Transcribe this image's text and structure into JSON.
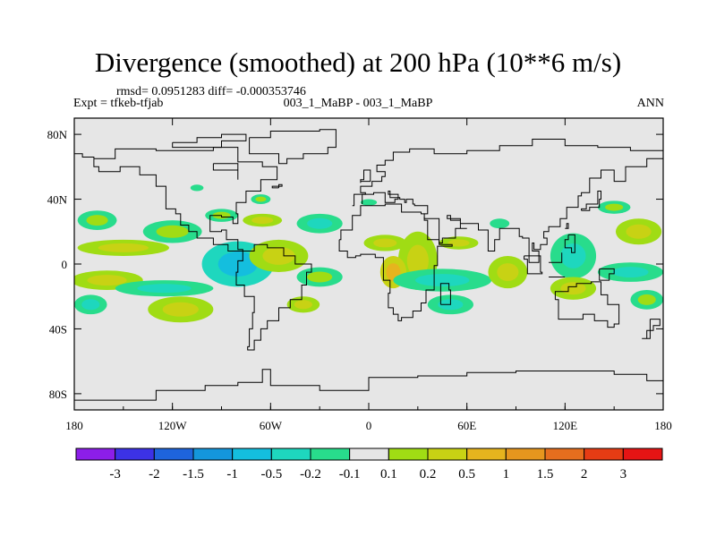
{
  "header": {
    "title": "Divergence (smoothed) at 200 hPa (10**6 m/s)",
    "stats": "rmsd= 0.0951283 diff= -0.000353746",
    "experiment": "Expt = tfkeb-tfjab",
    "cases": "003_1_MaBP - 003_1_MaBP",
    "period": "ANN"
  },
  "chart_data": {
    "type": "heatmap",
    "title": "Divergence (smoothed) at 200 hPa (10**6 m/s)",
    "x_axis": {
      "range": [
        -180,
        180
      ],
      "ticks": [
        {
          "value": -180,
          "label": "180"
        },
        {
          "value": -120,
          "label": "120W"
        },
        {
          "value": -60,
          "label": "60W"
        },
        {
          "value": 0,
          "label": "0"
        },
        {
          "value": 60,
          "label": "60E"
        },
        {
          "value": 120,
          "label": "120E"
        },
        {
          "value": 180,
          "label": "180"
        }
      ]
    },
    "y_axis": {
      "range": [
        -90,
        90
      ],
      "ticks": [
        {
          "value": 80,
          "label": "80N"
        },
        {
          "value": 40,
          "label": "40N"
        },
        {
          "value": 0,
          "label": "0"
        },
        {
          "value": -40,
          "label": "40S"
        },
        {
          "value": -80,
          "label": "80S"
        }
      ]
    },
    "colorbar": {
      "labels": [
        "-3",
        "-2",
        "-1.5",
        "-1",
        "-0.5",
        "-0.2",
        "-0.1",
        "0.1",
        "0.2",
        "0.5",
        "1",
        "1.5",
        "2",
        "3"
      ],
      "colors": [
        "#8c1ee8",
        "#3c32e6",
        "#1e64dc",
        "#1496dc",
        "#14bede",
        "#1ed7be",
        "#28dc8c",
        "#e6e6e6",
        "#a0dc14",
        "#c8d214",
        "#e6b41e",
        "#e6961e",
        "#e66e1e",
        "#e63c14",
        "#e61414"
      ]
    },
    "background_color": "#e6e6e6",
    "regions": [
      {
        "lon": -166,
        "lat": 27,
        "rx": 12,
        "ry": 6,
        "color": "#28dc8c",
        "core": "#a0dc14"
      },
      {
        "lon": -120,
        "lat": 20,
        "rx": 18,
        "ry": 7,
        "color": "#28dc8c",
        "core": "#a0dc14"
      },
      {
        "lon": -150,
        "lat": 10,
        "rx": 28,
        "ry": 5,
        "color": "#a0dc14",
        "core": "#c8d214"
      },
      {
        "lon": -160,
        "lat": -10,
        "rx": 22,
        "ry": 6,
        "color": "#a0dc14",
        "core": "#c8d214"
      },
      {
        "lon": -125,
        "lat": -15,
        "rx": 30,
        "ry": 5,
        "color": "#28dc8c",
        "core": "#1ed7be"
      },
      {
        "lon": -170,
        "lat": -25,
        "rx": 10,
        "ry": 6,
        "color": "#28dc8c",
        "core": "#1ed7be"
      },
      {
        "lon": -115,
        "lat": -28,
        "rx": 20,
        "ry": 8,
        "color": "#a0dc14",
        "core": "#c8d214"
      },
      {
        "lon": -80,
        "lat": 0,
        "rx": 22,
        "ry": 14,
        "color": "#1ed7be",
        "core": "#14bede"
      },
      {
        "lon": -55,
        "lat": 5,
        "rx": 18,
        "ry": 10,
        "color": "#a0dc14",
        "core": "#c8d214"
      },
      {
        "lon": -30,
        "lat": 25,
        "rx": 14,
        "ry": 6,
        "color": "#28dc8c",
        "core": "#1ed7be"
      },
      {
        "lon": -65,
        "lat": 27,
        "rx": 12,
        "ry": 4,
        "color": "#a0dc14",
        "core": "#c8d214"
      },
      {
        "lon": -90,
        "lat": 30,
        "rx": 10,
        "ry": 4,
        "color": "#28dc8c",
        "core": "#a0dc14"
      },
      {
        "lon": -30,
        "lat": -8,
        "rx": 14,
        "ry": 6,
        "color": "#28dc8c",
        "core": "#a0dc14"
      },
      {
        "lon": -40,
        "lat": -25,
        "rx": 10,
        "ry": 5,
        "color": "#a0dc14",
        "core": "#c8d214"
      },
      {
        "lon": -66,
        "lat": 40,
        "rx": 6,
        "ry": 3,
        "color": "#28dc8c",
        "core": "#a0dc14"
      },
      {
        "lon": -105,
        "lat": 47,
        "rx": 4,
        "ry": 2,
        "color": "#28dc8c",
        "core": "#28dc8c"
      },
      {
        "lon": 10,
        "lat": 13,
        "rx": 13,
        "ry": 5,
        "color": "#a0dc14",
        "core": "#c8d214"
      },
      {
        "lon": 30,
        "lat": 2,
        "rx": 12,
        "ry": 18,
        "color": "#a0dc14",
        "core": "#c8d214"
      },
      {
        "lon": 15,
        "lat": -5,
        "rx": 8,
        "ry": 10,
        "color": "#c8d214",
        "core": "#e6b41e"
      },
      {
        "lon": 55,
        "lat": 13,
        "rx": 12,
        "ry": 4,
        "color": "#a0dc14",
        "core": "#c8d214"
      },
      {
        "lon": 45,
        "lat": -10,
        "rx": 30,
        "ry": 7,
        "color": "#28dc8c",
        "core": "#1ed7be"
      },
      {
        "lon": 50,
        "lat": -25,
        "rx": 14,
        "ry": 6,
        "color": "#28dc8c",
        "core": "#1ed7be"
      },
      {
        "lon": 85,
        "lat": -5,
        "rx": 12,
        "ry": 10,
        "color": "#a0dc14",
        "core": "#c8d214"
      },
      {
        "lon": 80,
        "lat": 25,
        "rx": 6,
        "ry": 3,
        "color": "#28dc8c",
        "core": "#28dc8c"
      },
      {
        "lon": 125,
        "lat": 5,
        "rx": 14,
        "ry": 14,
        "color": "#28dc8c",
        "core": "#1ed7be"
      },
      {
        "lon": 125,
        "lat": -15,
        "rx": 14,
        "ry": 7,
        "color": "#a0dc14",
        "core": "#c8d214"
      },
      {
        "lon": 160,
        "lat": -5,
        "rx": 20,
        "ry": 6,
        "color": "#28dc8c",
        "core": "#1ed7be"
      },
      {
        "lon": 165,
        "lat": 20,
        "rx": 14,
        "ry": 8,
        "color": "#a0dc14",
        "core": "#c8d214"
      },
      {
        "lon": 150,
        "lat": 35,
        "rx": 10,
        "ry": 4,
        "color": "#28dc8c",
        "core": "#a0dc14"
      },
      {
        "lon": 170,
        "lat": -22,
        "rx": 10,
        "ry": 6,
        "color": "#28dc8c",
        "core": "#a0dc14"
      },
      {
        "lon": 0,
        "lat": 38,
        "rx": 5,
        "ry": 2,
        "color": "#28dc8c",
        "core": "#28dc8c"
      }
    ],
    "coastlines": [
      [
        [
          -168,
          65
        ],
        [
          -155,
          71
        ],
        [
          -130,
          70
        ],
        [
          -95,
          72
        ],
        [
          -80,
          63
        ],
        [
          -65,
          60
        ],
        [
          -56,
          52
        ],
        [
          -66,
          45
        ],
        [
          -75,
          38
        ],
        [
          -81,
          31
        ],
        [
          -80,
          25
        ],
        [
          -83,
          29
        ],
        [
          -90,
          30
        ],
        [
          -97,
          27
        ],
        [
          -97,
          20
        ],
        [
          -90,
          21
        ],
        [
          -87,
          15
        ],
        [
          -80,
          9
        ],
        [
          -77,
          8
        ],
        [
          -86,
          12
        ],
        [
          -95,
          16
        ],
        [
          -105,
          20
        ],
        [
          -110,
          24
        ],
        [
          -115,
          31
        ],
        [
          -118,
          34
        ],
        [
          -124,
          40
        ],
        [
          -124,
          48
        ],
        [
          -130,
          55
        ],
        [
          -140,
          60
        ],
        [
          -152,
          57
        ],
        [
          -165,
          60
        ],
        [
          -168,
          65
        ]
      ],
      [
        [
          -77,
          8
        ],
        [
          -70,
          12
        ],
        [
          -62,
          10
        ],
        [
          -52,
          5
        ],
        [
          -45,
          0
        ],
        [
          -35,
          -5
        ],
        [
          -38,
          -13
        ],
        [
          -41,
          -22
        ],
        [
          -48,
          -27
        ],
        [
          -55,
          -35
        ],
        [
          -62,
          -40
        ],
        [
          -66,
          -47
        ],
        [
          -70,
          -53
        ],
        [
          -74,
          -51
        ],
        [
          -73,
          -40
        ],
        [
          -71,
          -30
        ],
        [
          -70,
          -20
        ],
        [
          -76,
          -13
        ],
        [
          -81,
          -5
        ],
        [
          -80,
          2
        ],
        [
          -77,
          8
        ]
      ],
      [
        [
          -18,
          15
        ],
        [
          -17,
          21
        ],
        [
          -10,
          30
        ],
        [
          -5,
          36
        ],
        [
          10,
          37
        ],
        [
          20,
          32
        ],
        [
          32,
          31
        ],
        [
          34,
          28
        ],
        [
          43,
          12
        ],
        [
          51,
          11
        ],
        [
          42,
          -1
        ],
        [
          40,
          -10
        ],
        [
          40,
          -16
        ],
        [
          35,
          -24
        ],
        [
          32,
          -29
        ],
        [
          27,
          -33
        ],
        [
          20,
          -35
        ],
        [
          18,
          -31
        ],
        [
          15,
          -27
        ],
        [
          12,
          -18
        ],
        [
          13,
          -10
        ],
        [
          9,
          -1
        ],
        [
          9,
          4
        ],
        [
          4,
          6
        ],
        [
          -5,
          5
        ],
        [
          -8,
          4
        ],
        [
          -13,
          8
        ],
        [
          -18,
          15
        ]
      ],
      [
        [
          -10,
          36
        ],
        [
          -9,
          43
        ],
        [
          -2,
          44
        ],
        [
          -5,
          48
        ],
        [
          2,
          51
        ],
        [
          8,
          54
        ],
        [
          10,
          57
        ],
        [
          5,
          61
        ],
        [
          10,
          64
        ],
        [
          15,
          69
        ],
        [
          25,
          71
        ],
        [
          40,
          68
        ],
        [
          60,
          70
        ],
        [
          80,
          73
        ],
        [
          100,
          77
        ],
        [
          120,
          73
        ],
        [
          140,
          72
        ],
        [
          160,
          70
        ],
        [
          180,
          68
        ]
      ],
      [
        [
          180,
          65
        ],
        [
          170,
          60
        ],
        [
          160,
          60
        ],
        [
          157,
          51
        ],
        [
          150,
          58
        ],
        [
          142,
          53
        ],
        [
          135,
          44
        ],
        [
          130,
          42
        ],
        [
          128,
          35
        ],
        [
          121,
          31
        ],
        [
          121,
          28
        ],
        [
          117,
          23
        ],
        [
          110,
          20
        ],
        [
          107,
          16
        ],
        [
          109,
          12
        ],
        [
          105,
          9
        ],
        [
          101,
          13
        ],
        [
          100,
          8
        ],
        [
          104,
          1
        ],
        [
          98,
          8
        ],
        [
          98,
          16
        ],
        [
          94,
          17
        ],
        [
          92,
          22
        ],
        [
          88,
          22
        ],
        [
          80,
          15
        ],
        [
          77,
          8
        ],
        [
          73,
          16
        ],
        [
          73,
          21
        ],
        [
          67,
          25
        ],
        [
          57,
          25
        ],
        [
          56,
          27
        ],
        [
          50,
          30
        ],
        [
          48,
          28
        ],
        [
          56,
          22
        ],
        [
          60,
          22
        ],
        [
          53,
          16
        ],
        [
          45,
          13
        ],
        [
          43,
          15
        ],
        [
          36,
          27
        ],
        [
          34,
          29
        ]
      ],
      [
        [
          34,
          31
        ],
        [
          36,
          36
        ],
        [
          28,
          37
        ],
        [
          27,
          40
        ],
        [
          23,
          38
        ],
        [
          22,
          40
        ],
        [
          19,
          41
        ],
        [
          13,
          45
        ],
        [
          12,
          43
        ],
        [
          18,
          40
        ],
        [
          16,
          38
        ],
        [
          10,
          44
        ],
        [
          3,
          43
        ],
        [
          -4,
          37
        ]
      ],
      [
        [
          114,
          -22
        ],
        [
          116,
          -34
        ],
        [
          124,
          -34
        ],
        [
          131,
          -31
        ],
        [
          138,
          -35
        ],
        [
          146,
          -39
        ],
        [
          150,
          -37
        ],
        [
          153,
          -28
        ],
        [
          153,
          -25
        ],
        [
          146,
          -19
        ],
        [
          142,
          -11
        ],
        [
          136,
          -12
        ],
        [
          131,
          -12
        ],
        [
          127,
          -14
        ],
        [
          122,
          -17
        ],
        [
          114,
          -22
        ]
      ],
      [
        [
          -55,
          47
        ],
        [
          -59,
          48
        ],
        [
          -53,
          49
        ],
        [
          -55,
          47
        ]
      ],
      [
        [
          -73,
          78
        ],
        [
          -60,
          82
        ],
        [
          -30,
          83
        ],
        [
          -20,
          80
        ],
        [
          -20,
          72
        ],
        [
          -25,
          68
        ],
        [
          -40,
          65
        ],
        [
          -50,
          62
        ],
        [
          -55,
          68
        ],
        [
          -73,
          78
        ]
      ],
      [
        [
          -5,
          50
        ],
        [
          -5,
          52
        ],
        [
          -3,
          55
        ],
        [
          -3,
          58
        ],
        [
          -2,
          58
        ],
        [
          1,
          53
        ],
        [
          1,
          51
        ],
        [
          -5,
          50
        ]
      ],
      [
        [
          44,
          -25
        ],
        [
          50,
          -16
        ],
        [
          49,
          -12
        ],
        [
          44,
          -17
        ],
        [
          44,
          -25
        ]
      ],
      [
        [
          95,
          5
        ],
        [
          105,
          -5
        ],
        [
          106,
          -6
        ],
        [
          97,
          3
        ],
        [
          95,
          5
        ]
      ],
      [
        [
          110,
          -8
        ],
        [
          120,
          -8
        ],
        [
          115,
          -8
        ]
      ],
      [
        [
          110,
          1
        ],
        [
          118,
          7
        ],
        [
          118,
          1
        ],
        [
          110,
          1
        ]
      ],
      [
        [
          141,
          -3
        ],
        [
          150,
          -6
        ],
        [
          147,
          -10
        ],
        [
          141,
          -9
        ],
        [
          141,
          -3
        ]
      ],
      [
        [
          130,
          33
        ],
        [
          135,
          35
        ],
        [
          141,
          40
        ],
        [
          142,
          45
        ],
        [
          140,
          37
        ],
        [
          133,
          34
        ],
        [
          130,
          33
        ]
      ],
      [
        [
          120,
          22
        ],
        [
          122,
          25
        ],
        [
          121,
          22
        ]
      ],
      [
        [
          122,
          18
        ],
        [
          126,
          7
        ],
        [
          124,
          10
        ],
        [
          120,
          15
        ],
        [
          122,
          18
        ]
      ],
      [
        [
          172,
          -34
        ],
        [
          178,
          -38
        ],
        [
          174,
          -41
        ],
        [
          170,
          -46
        ],
        [
          167,
          -46
        ],
        [
          172,
          -34
        ]
      ],
      [
        [
          -180,
          -84
        ],
        [
          -150,
          -84
        ],
        [
          -130,
          -78
        ],
        [
          -100,
          -75
        ],
        [
          -80,
          -73
        ],
        [
          -65,
          -65
        ],
        [
          -60,
          -75
        ],
        [
          -30,
          -78
        ],
        [
          0,
          -70
        ],
        [
          30,
          -69
        ],
        [
          60,
          -67
        ],
        [
          90,
          -66
        ],
        [
          120,
          -66
        ],
        [
          150,
          -68
        ],
        [
          170,
          -72
        ],
        [
          180,
          -78
        ]
      ],
      [
        [
          -180,
          68
        ],
        [
          -175,
          66
        ],
        [
          -168,
          65
        ]
      ],
      [
        [
          -120,
          75
        ],
        [
          -105,
          78
        ],
        [
          -90,
          80
        ],
        [
          -75,
          76
        ],
        [
          -90,
          72
        ],
        [
          -105,
          72
        ],
        [
          -120,
          75
        ]
      ],
      [
        [
          -95,
          62
        ],
        [
          -80,
          52
        ],
        [
          -80,
          58
        ],
        [
          -95,
          62
        ]
      ]
    ]
  }
}
